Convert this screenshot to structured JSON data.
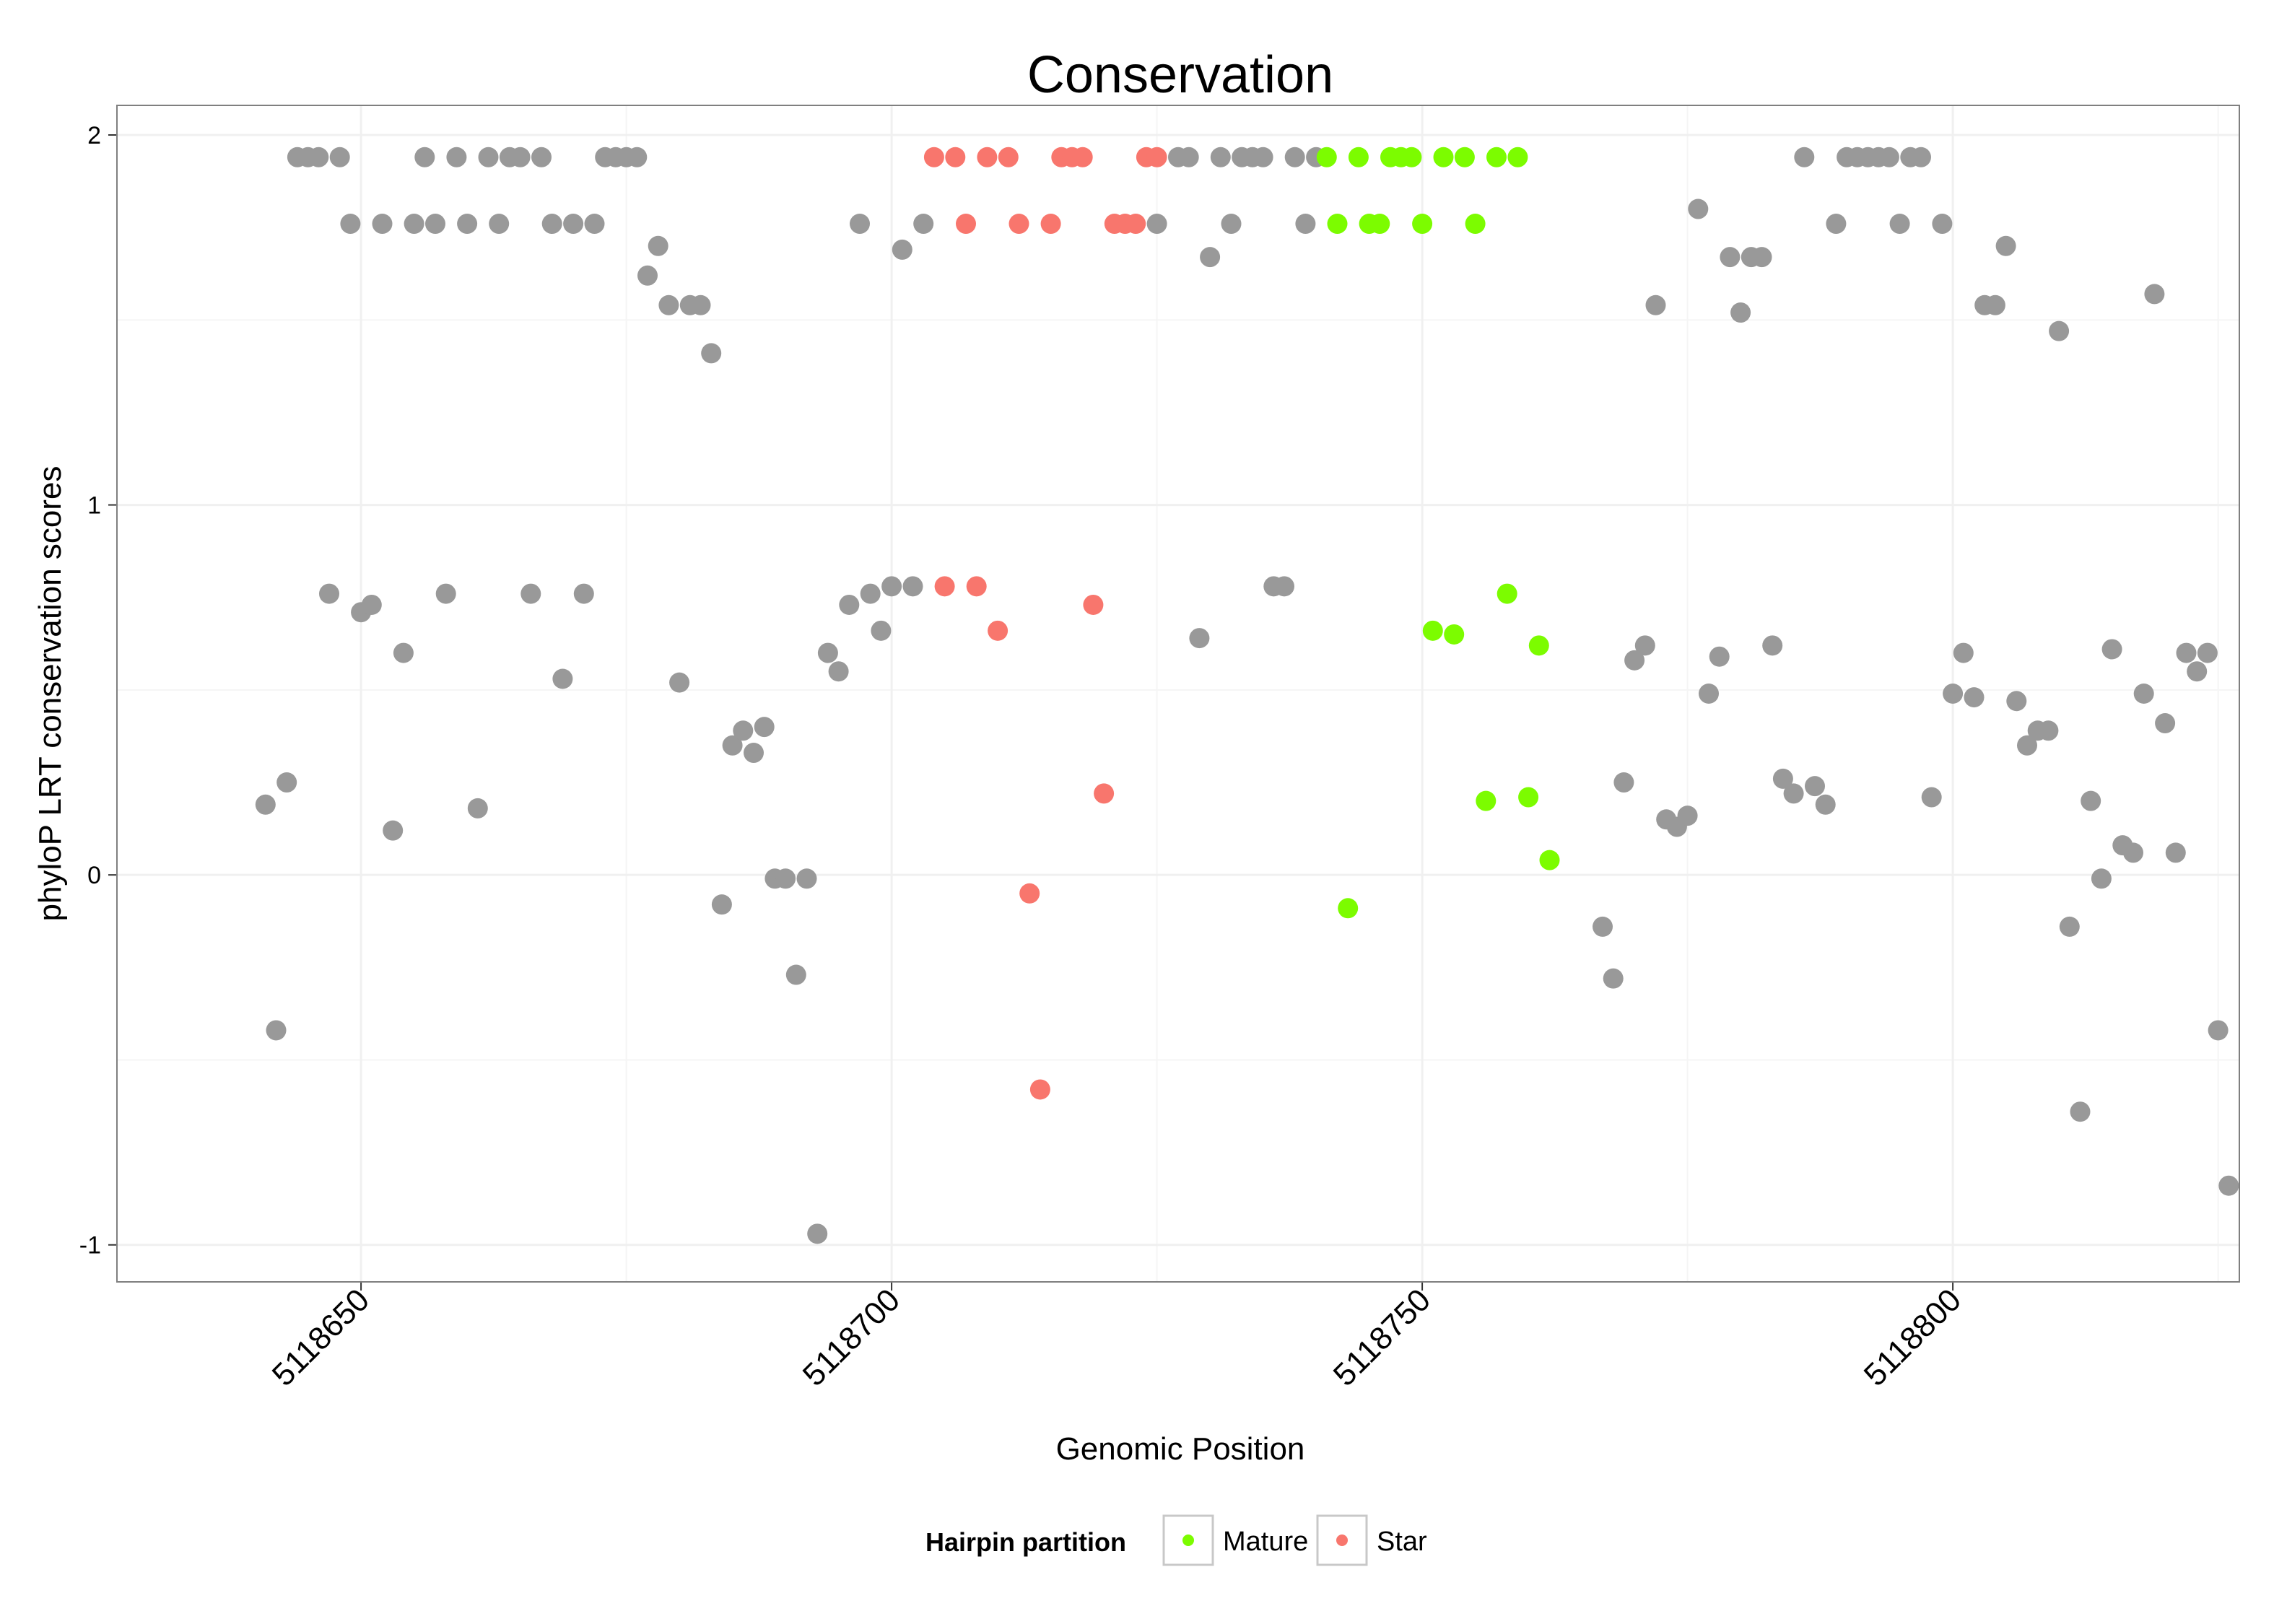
{
  "chart_data": {
    "type": "scatter",
    "title": "Conservation",
    "xlabel": "Genomic Position",
    "ylabel": "phyloP LRT conservation scores",
    "xlim": [
      5118627,
      5118827
    ],
    "ylim": [
      -1.1,
      2.08
    ],
    "x_ticks": [
      5118650,
      5118700,
      5118750,
      5118800
    ],
    "x_tick_labels": [
      "5118650",
      "5118700",
      "5118750",
      "5118800"
    ],
    "y_ticks": [
      -1,
      0,
      1,
      2
    ],
    "y_tick_labels": [
      "-1",
      "0",
      "1",
      "2"
    ],
    "grid": true,
    "legend": {
      "title": "Hairpin partition",
      "position": "bottom",
      "entries": [
        {
          "name": "Mature",
          "color": "#7CFC00"
        },
        {
          "name": "Star",
          "color": "#F8766D"
        }
      ]
    },
    "colors": {
      "Other": "#999999",
      "Mature": "#7CFC00",
      "Star": "#F8766D"
    },
    "series": [
      {
        "name": "Other",
        "points": [
          [
            5118641,
            0.19
          ],
          [
            5118642,
            -0.42
          ],
          [
            5118643,
            0.25
          ],
          [
            5118644,
            1.94
          ],
          [
            5118645,
            1.94
          ],
          [
            5118646,
            1.94
          ],
          [
            5118647,
            0.76
          ],
          [
            5118648,
            1.94
          ],
          [
            5118649,
            1.76
          ],
          [
            5118650,
            0.71
          ],
          [
            5118651,
            0.73
          ],
          [
            5118652,
            1.76
          ],
          [
            5118653,
            0.12
          ],
          [
            5118654,
            0.6
          ],
          [
            5118655,
            1.76
          ],
          [
            5118656,
            1.94
          ],
          [
            5118657,
            1.76
          ],
          [
            5118658,
            0.76
          ],
          [
            5118659,
            1.94
          ],
          [
            5118660,
            1.76
          ],
          [
            5118661,
            0.18
          ],
          [
            5118662,
            1.94
          ],
          [
            5118663,
            1.76
          ],
          [
            5118664,
            1.94
          ],
          [
            5118665,
            1.94
          ],
          [
            5118666,
            0.76
          ],
          [
            5118667,
            1.94
          ],
          [
            5118668,
            1.76
          ],
          [
            5118669,
            0.53
          ],
          [
            5118670,
            1.76
          ],
          [
            5118671,
            0.76
          ],
          [
            5118672,
            1.76
          ],
          [
            5118673,
            1.94
          ],
          [
            5118674,
            1.94
          ],
          [
            5118675,
            1.94
          ],
          [
            5118676,
            1.94
          ],
          [
            5118677,
            1.62
          ],
          [
            5118678,
            1.7
          ],
          [
            5118679,
            1.54
          ],
          [
            5118680,
            0.52
          ],
          [
            5118681,
            1.54
          ],
          [
            5118682,
            1.54
          ],
          [
            5118683,
            1.41
          ],
          [
            5118684,
            -0.08
          ],
          [
            5118685,
            0.35
          ],
          [
            5118686,
            0.39
          ],
          [
            5118687,
            0.33
          ],
          [
            5118688,
            0.4
          ],
          [
            5118689,
            -0.01
          ],
          [
            5118690,
            -0.01
          ],
          [
            5118691,
            -0.27
          ],
          [
            5118692,
            -0.01
          ],
          [
            5118693,
            -0.97
          ],
          [
            5118694,
            0.6
          ],
          [
            5118695,
            0.55
          ],
          [
            5118696,
            0.73
          ],
          [
            5118697,
            1.76
          ],
          [
            5118698,
            0.76
          ],
          [
            5118699,
            0.66
          ],
          [
            5118700,
            0.78
          ],
          [
            5118701,
            1.69
          ],
          [
            5118702,
            0.78
          ],
          [
            5118703,
            1.76
          ],
          [
            5118725,
            1.76
          ],
          [
            5118727,
            1.94
          ],
          [
            5118728,
            1.94
          ],
          [
            5118729,
            0.64
          ],
          [
            5118730,
            1.67
          ],
          [
            5118731,
            1.94
          ],
          [
            5118732,
            1.76
          ],
          [
            5118733,
            1.94
          ],
          [
            5118734,
            1.94
          ],
          [
            5118735,
            1.94
          ],
          [
            5118736,
            0.78
          ],
          [
            5118737,
            0.78
          ],
          [
            5118738,
            1.94
          ],
          [
            5118739,
            1.76
          ],
          [
            5118740,
            1.94
          ],
          [
            5118767,
            -0.14
          ],
          [
            5118768,
            -0.28
          ],
          [
            5118769,
            0.25
          ],
          [
            5118770,
            0.58
          ],
          [
            5118771,
            0.62
          ],
          [
            5118772,
            1.54
          ],
          [
            5118773,
            0.15
          ],
          [
            5118774,
            0.13
          ],
          [
            5118775,
            0.16
          ],
          [
            5118776,
            1.8
          ],
          [
            5118777,
            0.49
          ],
          [
            5118778,
            0.59
          ],
          [
            5118779,
            1.67
          ],
          [
            5118780,
            1.52
          ],
          [
            5118781,
            1.67
          ],
          [
            5118782,
            1.67
          ],
          [
            5118783,
            0.62
          ],
          [
            5118784,
            0.26
          ],
          [
            5118785,
            0.22
          ],
          [
            5118786,
            1.94
          ],
          [
            5118787,
            0.24
          ],
          [
            5118788,
            0.19
          ],
          [
            5118789,
            1.76
          ],
          [
            5118790,
            1.94
          ],
          [
            5118791,
            1.94
          ],
          [
            5118792,
            1.94
          ],
          [
            5118793,
            1.94
          ],
          [
            5118794,
            1.94
          ],
          [
            5118795,
            1.76
          ],
          [
            5118796,
            1.94
          ],
          [
            5118797,
            1.94
          ],
          [
            5118798,
            0.21
          ],
          [
            5118799,
            1.76
          ],
          [
            5118800,
            0.49
          ],
          [
            5118801,
            0.6
          ],
          [
            5118802,
            0.48
          ],
          [
            5118803,
            1.54
          ],
          [
            5118804,
            1.54
          ],
          [
            5118805,
            1.7
          ],
          [
            5118806,
            0.47
          ],
          [
            5118807,
            0.35
          ],
          [
            5118808,
            0.39
          ],
          [
            5118809,
            0.39
          ],
          [
            5118810,
            1.47
          ],
          [
            5118811,
            -0.14
          ],
          [
            5118812,
            -0.64
          ],
          [
            5118813,
            0.2
          ],
          [
            5118814,
            -0.01
          ],
          [
            5118815,
            0.61
          ],
          [
            5118816,
            0.08
          ],
          [
            5118817,
            0.06
          ],
          [
            5118818,
            0.49
          ],
          [
            5118819,
            1.57
          ],
          [
            5118820,
            0.41
          ],
          [
            5118821,
            0.06
          ],
          [
            5118822,
            0.6
          ],
          [
            5118823,
            0.55
          ],
          [
            5118824,
            0.6
          ],
          [
            5118825,
            -0.42
          ],
          [
            5118826,
            -0.84
          ]
        ]
      },
      {
        "name": "Star",
        "points": [
          [
            5118704,
            1.94
          ],
          [
            5118705,
            0.78
          ],
          [
            5118706,
            1.94
          ],
          [
            5118707,
            1.76
          ],
          [
            5118708,
            0.78
          ],
          [
            5118709,
            1.94
          ],
          [
            5118710,
            0.66
          ],
          [
            5118711,
            1.94
          ],
          [
            5118712,
            1.76
          ],
          [
            5118713,
            -0.05
          ],
          [
            5118714,
            -0.58
          ],
          [
            5118715,
            1.76
          ],
          [
            5118716,
            1.94
          ],
          [
            5118717,
            1.94
          ],
          [
            5118718,
            1.94
          ],
          [
            5118719,
            0.73
          ],
          [
            5118720,
            0.22
          ],
          [
            5118721,
            1.76
          ],
          [
            5118722,
            1.76
          ],
          [
            5118723,
            1.76
          ],
          [
            5118724,
            1.94
          ],
          [
            5118725,
            1.94
          ]
        ]
      },
      {
        "name": "Mature",
        "points": [
          [
            5118741,
            1.94
          ],
          [
            5118742,
            1.76
          ],
          [
            5118743,
            -0.09
          ],
          [
            5118744,
            1.94
          ],
          [
            5118745,
            1.76
          ],
          [
            5118746,
            1.76
          ],
          [
            5118747,
            1.94
          ],
          [
            5118748,
            1.94
          ],
          [
            5118749,
            1.94
          ],
          [
            5118750,
            1.76
          ],
          [
            5118751,
            0.66
          ],
          [
            5118752,
            1.94
          ],
          [
            5118753,
            0.65
          ],
          [
            5118754,
            1.94
          ],
          [
            5118755,
            1.76
          ],
          [
            5118756,
            0.2
          ],
          [
            5118757,
            1.94
          ],
          [
            5118758,
            0.76
          ],
          [
            5118759,
            1.94
          ],
          [
            5118760,
            0.21
          ],
          [
            5118761,
            0.62
          ],
          [
            5118762,
            0.04
          ]
        ]
      }
    ]
  }
}
